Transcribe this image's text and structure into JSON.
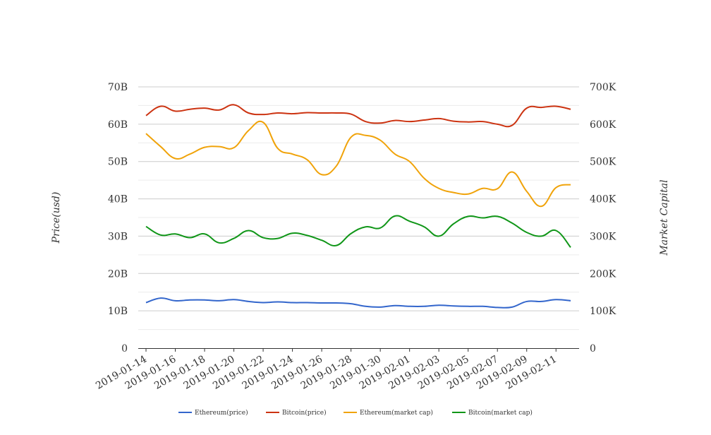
{
  "chart_data": {
    "type": "line",
    "x": [
      "2019-01-14",
      "2019-01-15",
      "2019-01-16",
      "2019-01-17",
      "2019-01-18",
      "2019-01-19",
      "2019-01-20",
      "2019-01-21",
      "2019-01-22",
      "2019-01-23",
      "2019-01-24",
      "2019-01-25",
      "2019-01-26",
      "2019-01-27",
      "2019-01-28",
      "2019-01-29",
      "2019-01-30",
      "2019-01-31",
      "2019-02-01",
      "2019-02-02",
      "2019-02-03",
      "2019-02-04",
      "2019-02-05",
      "2019-02-06",
      "2019-02-07",
      "2019-02-08",
      "2019-02-09",
      "2019-02-10",
      "2019-02-11",
      "2019-02-12"
    ],
    "x_tick_labels": [
      "2019-01-14",
      "2019-01-16",
      "2019-01-18",
      "2019-01-20",
      "2019-01-22",
      "2019-01-24",
      "2019-01-26",
      "2019-01-28",
      "2019-01-30",
      "2019-02-01",
      "2019-02-03",
      "2019-02-05",
      "2019-02-07",
      "2019-02-09",
      "2019-02-11"
    ],
    "y_left": {
      "label": "Price(usd)",
      "ticks": [
        "0",
        "10B",
        "20B",
        "30B",
        "40B",
        "50B",
        "60B",
        "70B"
      ],
      "range": [
        0,
        70000000000
      ]
    },
    "y_right": {
      "label": "Market Capital",
      "ticks": [
        "0",
        "100K",
        "200K",
        "300K",
        "400K",
        "500K",
        "600K",
        "700K"
      ],
      "range": [
        0,
        700000
      ]
    },
    "series": [
      {
        "name": "Ethereum(price)",
        "color": "#3366cc",
        "axis": "left",
        "values": [
          12.2,
          13.4,
          12.7,
          12.9,
          12.9,
          12.7,
          13.0,
          12.5,
          12.2,
          12.4,
          12.2,
          12.2,
          12.1,
          12.1,
          11.9,
          11.2,
          11.0,
          11.4,
          11.2,
          11.2,
          11.5,
          11.3,
          11.2,
          11.2,
          10.9,
          11.0,
          12.5,
          12.5,
          13.0,
          12.7
        ]
      },
      {
        "name": "Bitcoin(price)",
        "color": "#cc3311",
        "axis": "left",
        "values": [
          62.3,
          64.8,
          63.5,
          64.0,
          64.3,
          63.8,
          65.2,
          63.0,
          62.6,
          63.0,
          62.8,
          63.1,
          63.0,
          63.0,
          62.7,
          60.7,
          60.3,
          61.0,
          60.7,
          61.1,
          61.5,
          60.8,
          60.6,
          60.7,
          60.0,
          59.7,
          64.3,
          64.5,
          64.8,
          64.0
        ]
      },
      {
        "name": "Ethereum(market cap)",
        "color": "#f0a30a",
        "axis": "right",
        "values": [
          575000,
          540000,
          508000,
          520000,
          538000,
          540000,
          537000,
          583000,
          605000,
          535000,
          520000,
          505000,
          465000,
          488000,
          565000,
          570000,
          557000,
          520000,
          500000,
          455000,
          428000,
          417000,
          413000,
          428000,
          427000,
          472000,
          420000,
          380000,
          430000,
          438000
        ]
      },
      {
        "name": "Bitcoin(market cap)",
        "color": "#109618",
        "axis": "right",
        "values": [
          326000,
          303000,
          306000,
          296000,
          306000,
          282000,
          294000,
          315000,
          296000,
          294000,
          308000,
          302000,
          289000,
          275000,
          307000,
          325000,
          322000,
          354000,
          340000,
          325000,
          300000,
          333000,
          353000,
          349000,
          353000,
          335000,
          310000,
          300000,
          315000,
          270000
        ]
      }
    ],
    "legend_position": "bottom",
    "grid": true
  }
}
